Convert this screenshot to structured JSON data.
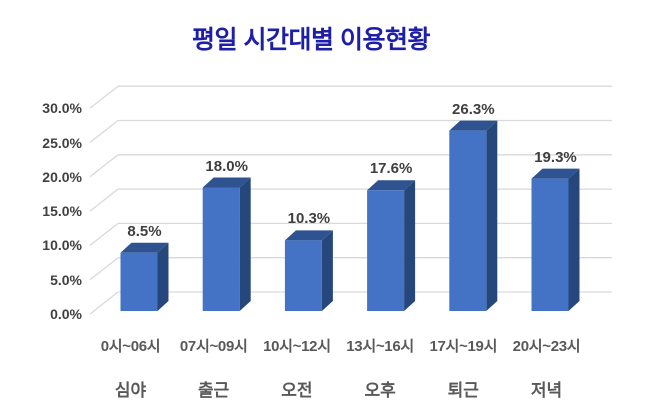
{
  "page": {
    "background": "#ffffff"
  },
  "chart_data": {
    "type": "bar",
    "style": "3d-column",
    "title": "평일 시간대별 이용현황",
    "categories": [
      "0시~06시",
      "07시~09시",
      "10시~12시",
      "13시~16시",
      "17시~19시",
      "20시~23시"
    ],
    "category_names": [
      "심야",
      "출근",
      "오전",
      "오후",
      "퇴근",
      "저녁"
    ],
    "values": [
      8.5,
      18.0,
      10.3,
      17.6,
      26.3,
      19.3
    ],
    "data_labels": [
      "8.5%",
      "18.0%",
      "10.3%",
      "17.6%",
      "26.3%",
      "19.3%"
    ],
    "yticks": [
      "0.0%",
      "5.0%",
      "10.0%",
      "15.0%",
      "20.0%",
      "25.0%",
      "30.0%"
    ],
    "ytick_step": 5,
    "ylim": [
      0,
      30
    ],
    "xlabel": "",
    "ylabel": "",
    "grid": true,
    "legend": "none",
    "colors": {
      "title": "#1E1FA8",
      "bar_front": "#4472C4",
      "bar_top": "#2F5390",
      "bar_side": "#26477C",
      "gridline": "#D9D9D9",
      "axis_label": "#595959",
      "tick_label": "#404040",
      "data_label": "#3F3F3F"
    }
  }
}
